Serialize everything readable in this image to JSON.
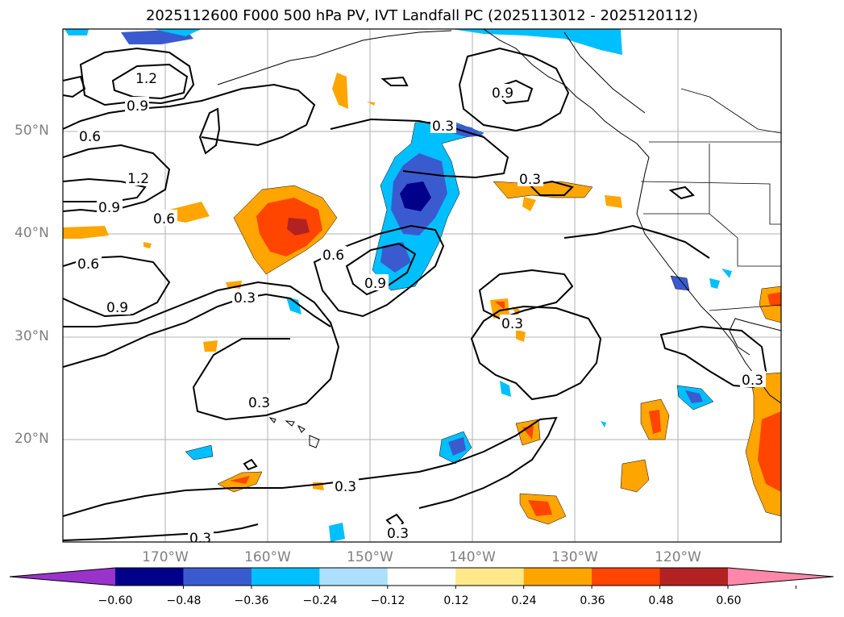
{
  "title": "2025112600 F000 500 hPa PV, IVT Landfall PC (2025113012 - 2025120112)",
  "lat_labels": [
    "50°N",
    "40°N",
    "30°N",
    "20°N"
  ],
  "lon_labels": [
    "170°W",
    "160°W",
    "150°W",
    "140°W",
    "130°W",
    "120°W"
  ],
  "contour_labels": [
    "1.2",
    "0.9",
    "0.6",
    "1.2",
    "0.9",
    "0.6",
    "0.6",
    "0.9",
    "0.3",
    "0.6",
    "0.9",
    "0.3",
    "0.3",
    "0.3",
    "0.3",
    "0.3",
    "0.3",
    "0.9",
    "0.3",
    "0.3"
  ],
  "colorbar": {
    "ticks": [
      "−0.60",
      "−0.48",
      "−0.36",
      "−0.24",
      "−0.12",
      "0.12",
      "0.24",
      "0.36",
      "0.48",
      "0.60"
    ],
    "colors": [
      "#9933cc",
      "#00008b",
      "#3a5bd0",
      "#00bfff",
      "#addfff",
      "#ffffff",
      "#ffe88a",
      "#ffa500",
      "#ff4500",
      "#b22222",
      "#ff88aa"
    ]
  },
  "fill_colors": {
    "neg_strong": "#00008b",
    "neg_mid": "#3a5bd0",
    "neg_weak": "#00bfff",
    "neg_faint": "#addfff",
    "pos_weak": "#ffa500",
    "pos_mid": "#ff4500",
    "pos_strong": "#b22222",
    "pos_faint": "#ffe88a"
  }
}
